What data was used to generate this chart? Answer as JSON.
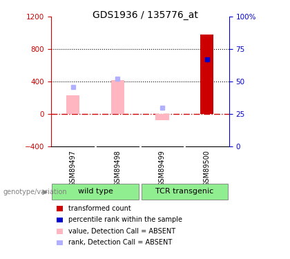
{
  "title": "GDS1936 / 135776_at",
  "samples": [
    "GSM89497",
    "GSM89498",
    "GSM89499",
    "GSM89500"
  ],
  "bar_values": [
    230,
    420,
    -80,
    980
  ],
  "bar_absent": [
    true,
    true,
    true,
    false
  ],
  "rank_values": [
    46,
    52,
    30,
    67
  ],
  "rank_absent": [
    true,
    true,
    true,
    false
  ],
  "ylim_left": [
    -400,
    1200
  ],
  "ylim_right": [
    0,
    100
  ],
  "yticks_left": [
    -400,
    0,
    400,
    800,
    1200
  ],
  "yticks_right": [
    0,
    25,
    50,
    75,
    100
  ],
  "hlines_dotted": [
    400,
    800
  ],
  "zero_line_y": 0,
  "background_color": "#ffffff",
  "bar_color_absent": "#ffb6c1",
  "bar_color_present": "#cc0000",
  "rank_color_absent": "#b0b0ff",
  "rank_color_present": "#0000cc",
  "left_axis_color": "#cc0000",
  "right_axis_color": "#0000cc",
  "zero_line_color": "#cc0000",
  "sample_box_color": "#d3d3d3",
  "group_box_color": "#90ee90",
  "group_defs": [
    {
      "label": "wild type",
      "start": 0,
      "end": 1
    },
    {
      "label": "TCR transgenic",
      "start": 2,
      "end": 3
    }
  ],
  "legend_items": [
    {
      "label": "transformed count",
      "color": "#cc0000"
    },
    {
      "label": "percentile rank within the sample",
      "color": "#0000cc"
    },
    {
      "label": "value, Detection Call = ABSENT",
      "color": "#ffb6c1"
    },
    {
      "label": "rank, Detection Call = ABSENT",
      "color": "#b0b0ff"
    }
  ],
  "genotype_label": "genotype/variation"
}
